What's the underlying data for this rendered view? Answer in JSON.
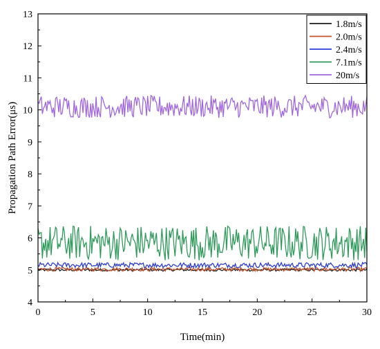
{
  "chart_data": {
    "type": "line",
    "xlabel": "Time(min)",
    "ylabel": "Propagation Path Error(μs)",
    "xlim": [
      0,
      30
    ],
    "ylim": [
      4,
      13
    ],
    "x_ticks": [
      "0",
      "5",
      "10",
      "15",
      "20",
      "25",
      "30"
    ],
    "y_ticks": [
      "4",
      "5",
      "6",
      "7",
      "8",
      "9",
      "10",
      "11",
      "12",
      "13"
    ],
    "grid": false,
    "legend_position": "top-right",
    "sample_interval_min": 0.1,
    "series": [
      {
        "name": "1.8m/s",
        "color": "#1a1a1a",
        "mean": 5.0,
        "amplitude": 0.04
      },
      {
        "name": "2.0m/s",
        "color": "#c0522b",
        "mean": 5.02,
        "amplitude": 0.06
      },
      {
        "name": "2.4m/s",
        "color": "#2a3bd6",
        "mean": 5.15,
        "amplitude": 0.08
      },
      {
        "name": "7.1m/s",
        "color": "#2e9a5a",
        "mean": 5.85,
        "amplitude": 0.55
      },
      {
        "name": "20m/s",
        "color": "#a066e0",
        "mean": 10.1,
        "amplitude": 0.35
      }
    ]
  }
}
